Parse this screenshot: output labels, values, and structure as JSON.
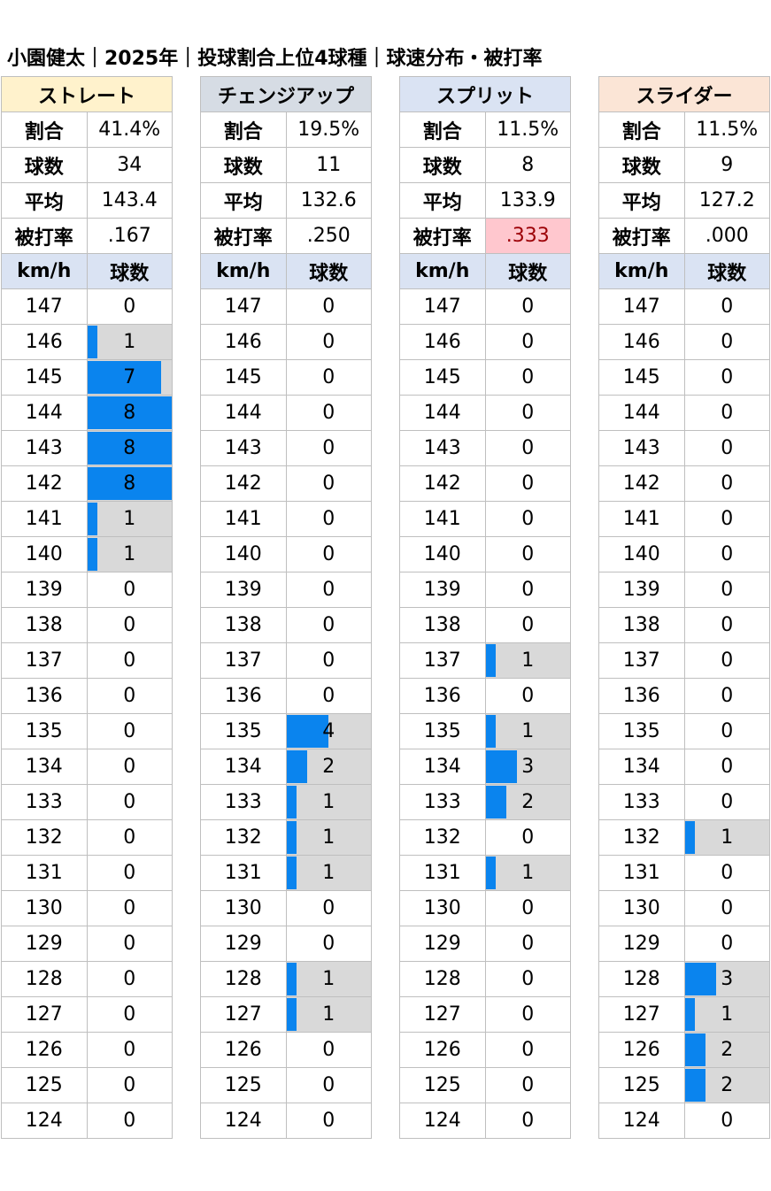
{
  "title": "小園健太｜2025年｜投球割合上位4球種｜球速分布・被打率",
  "labels": {
    "ratio": "割合",
    "count": "球数",
    "avg": "平均",
    "ba": "被打率",
    "kmh": "km/h",
    "pitches": "球数"
  },
  "colors": {
    "bar": "#0a84ee",
    "bar_bg": "#d9d9d9",
    "subheader_bg": "#dae3f3",
    "highlight_bg": "#ffc7ce",
    "highlight_text": "#9c0006"
  },
  "speeds": [
    "147",
    "146",
    "145",
    "144",
    "143",
    "142",
    "141",
    "140",
    "139",
    "138",
    "137",
    "136",
    "135",
    "134",
    "133",
    "132",
    "131",
    "130",
    "129",
    "128",
    "127",
    "126",
    "125",
    "124"
  ],
  "chart_data": {
    "type": "table",
    "bar_max": 8,
    "pitches": [
      {
        "name": "ストレート",
        "header_bg": "#fff2cc",
        "ratio": "41.4%",
        "count": "34",
        "avg": "143.4",
        "ba": ".167",
        "ba_highlight": false,
        "dist": [
          0,
          1,
          7,
          8,
          8,
          8,
          1,
          1,
          0,
          0,
          0,
          0,
          0,
          0,
          0,
          0,
          0,
          0,
          0,
          0,
          0,
          0,
          0,
          0
        ]
      },
      {
        "name": "チェンジアップ",
        "header_bg": "#d6dce4",
        "ratio": "19.5%",
        "count": "11",
        "avg": "132.6",
        "ba": ".250",
        "ba_highlight": false,
        "dist": [
          0,
          0,
          0,
          0,
          0,
          0,
          0,
          0,
          0,
          0,
          0,
          0,
          4,
          2,
          1,
          1,
          1,
          0,
          0,
          1,
          1,
          0,
          0,
          0
        ]
      },
      {
        "name": "スプリット",
        "header_bg": "#dae3f3",
        "ratio": "11.5%",
        "count": "8",
        "avg": "133.9",
        "ba": ".333",
        "ba_highlight": true,
        "dist": [
          0,
          0,
          0,
          0,
          0,
          0,
          0,
          0,
          0,
          0,
          1,
          0,
          1,
          3,
          2,
          0,
          1,
          0,
          0,
          0,
          0,
          0,
          0,
          0
        ]
      },
      {
        "name": "スライダー",
        "header_bg": "#fbe5d6",
        "ratio": "11.5%",
        "count": "9",
        "avg": "127.2",
        "ba": ".000",
        "ba_highlight": false,
        "dist": [
          0,
          0,
          0,
          0,
          0,
          0,
          0,
          0,
          0,
          0,
          0,
          0,
          0,
          0,
          0,
          1,
          0,
          0,
          0,
          3,
          1,
          2,
          2,
          0
        ]
      }
    ]
  }
}
